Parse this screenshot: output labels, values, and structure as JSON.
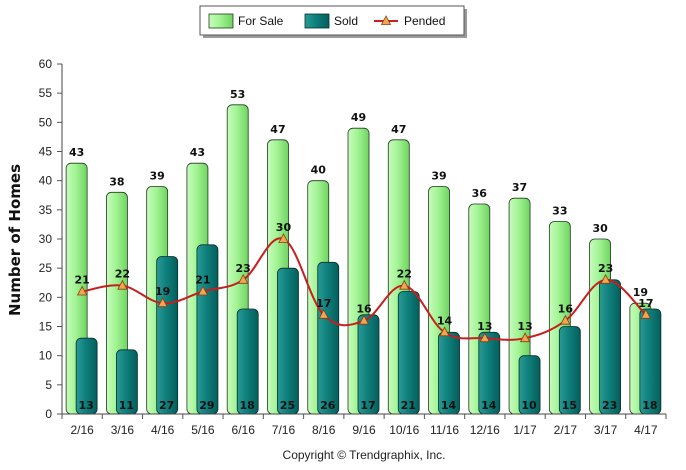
{
  "chart_data": {
    "type": "bar",
    "ylabel": "Number of Homes",
    "xlabel": "",
    "ylim": [
      0,
      60
    ],
    "yticks": [
      0,
      5,
      10,
      15,
      20,
      25,
      30,
      35,
      40,
      45,
      50,
      55,
      60
    ],
    "grid": false,
    "legend_position": "top-center",
    "categories": [
      "2/16",
      "3/16",
      "4/16",
      "5/16",
      "6/16",
      "7/16",
      "8/16",
      "9/16",
      "10/16",
      "11/16",
      "12/16",
      "1/17",
      "2/17",
      "3/17",
      "4/17"
    ],
    "series": [
      {
        "name": "For Sale",
        "kind": "bar",
        "color": "#98f08a",
        "values": [
          43,
          38,
          39,
          43,
          53,
          47,
          40,
          49,
          47,
          39,
          36,
          37,
          33,
          30,
          19
        ]
      },
      {
        "name": "Sold",
        "kind": "bar",
        "color": "#0b7b78",
        "values": [
          13,
          11,
          27,
          29,
          18,
          25,
          26,
          17,
          21,
          14,
          14,
          10,
          15,
          23,
          18
        ]
      },
      {
        "name": "Pended",
        "kind": "line",
        "color": "#c81e1e",
        "marker_color": "#f0a850",
        "values": [
          21,
          22,
          19,
          21,
          23,
          30,
          17,
          16,
          22,
          14,
          13,
          13,
          16,
          23,
          17
        ]
      }
    ]
  },
  "copyright": "Copyright © Trendgraphix, Inc."
}
